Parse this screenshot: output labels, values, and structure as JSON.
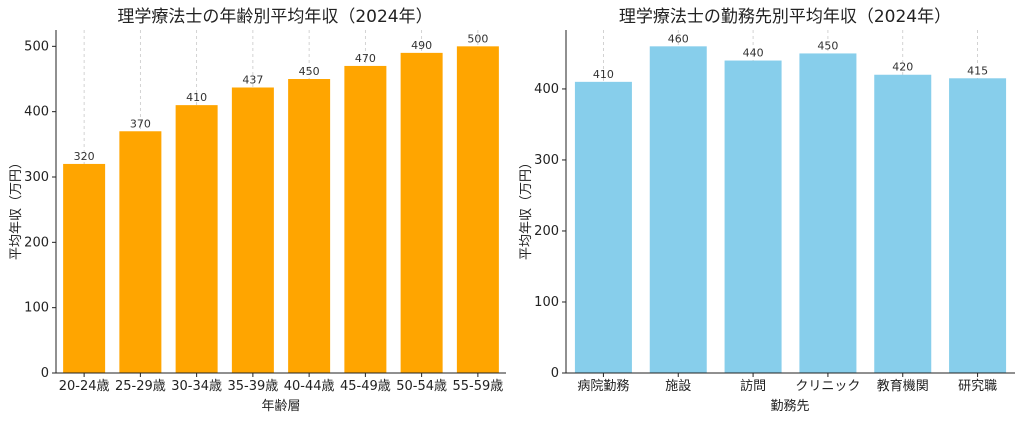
{
  "chart_data": [
    {
      "type": "bar",
      "title": "理学療法士の年齢別平均年収（2024年）",
      "xlabel": "年齢層",
      "ylabel": "平均年収（万円）",
      "categories": [
        "20-24歳",
        "25-29歳",
        "30-34歳",
        "35-39歳",
        "40-44歳",
        "45-49歳",
        "50-54歳",
        "55-59歳"
      ],
      "values": [
        320,
        370,
        410,
        437,
        450,
        470,
        490,
        500
      ],
      "ylim": [
        0,
        525
      ],
      "yticks": [
        0,
        100,
        200,
        300,
        400,
        500
      ],
      "color": "#FFA500",
      "grid": "vertical dashed",
      "legend": "none"
    },
    {
      "type": "bar",
      "title": "理学療法士の勤務先別平均年収（2024年）",
      "xlabel": "勤務先",
      "ylabel": "平均年収（万円）",
      "categories": [
        "病院勤務",
        "施設",
        "訪問",
        "クリニック",
        "教育機関",
        "研究職"
      ],
      "values": [
        410,
        460,
        440,
        450,
        420,
        415
      ],
      "ylim": [
        0,
        483
      ],
      "yticks": [
        0,
        100,
        200,
        300,
        400
      ],
      "color": "#87CEEB",
      "grid": "vertical dashed",
      "legend": "none"
    }
  ]
}
